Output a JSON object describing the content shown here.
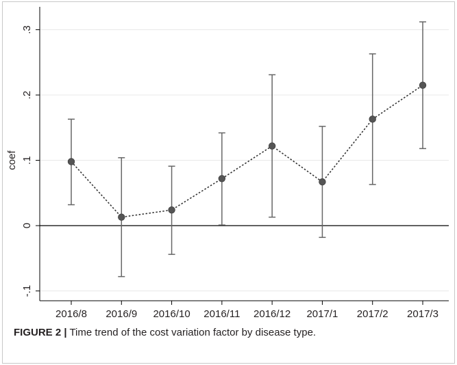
{
  "caption": {
    "label": "FIGURE 2 |",
    "text": "Time trend of the cost variation factor by disease type."
  },
  "chart_data": {
    "type": "scatter",
    "title": "",
    "xlabel": "",
    "ylabel": "coef",
    "ylim": [
      -0.115,
      0.335
    ],
    "yticks": [
      -0.1,
      0,
      0.1,
      0.2,
      0.3
    ],
    "ytick_labels": [
      "-.1",
      "0",
      ".1",
      ".2",
      ".3"
    ],
    "grid": true,
    "reference_line": 0,
    "categories": [
      "2016/8",
      "2016/9",
      "2016/10",
      "2016/11",
      "2016/12",
      "2017/1",
      "2017/2",
      "2017/3"
    ],
    "series": [
      {
        "values": [
          0.098,
          0.013,
          0.024,
          0.072,
          0.122,
          0.067,
          0.163,
          0.215
        ],
        "lower": [
          0.032,
          -0.078,
          -0.044,
          0.001,
          0.013,
          -0.018,
          0.063,
          0.118
        ],
        "upper": [
          0.163,
          0.104,
          0.091,
          0.142,
          0.231,
          0.152,
          0.263,
          0.312
        ]
      }
    ],
    "colors": {
      "marker": "#555555",
      "errorbar": "#666666",
      "line": "#333333",
      "grid": "#e8e8e8",
      "axis": "#000000"
    }
  }
}
